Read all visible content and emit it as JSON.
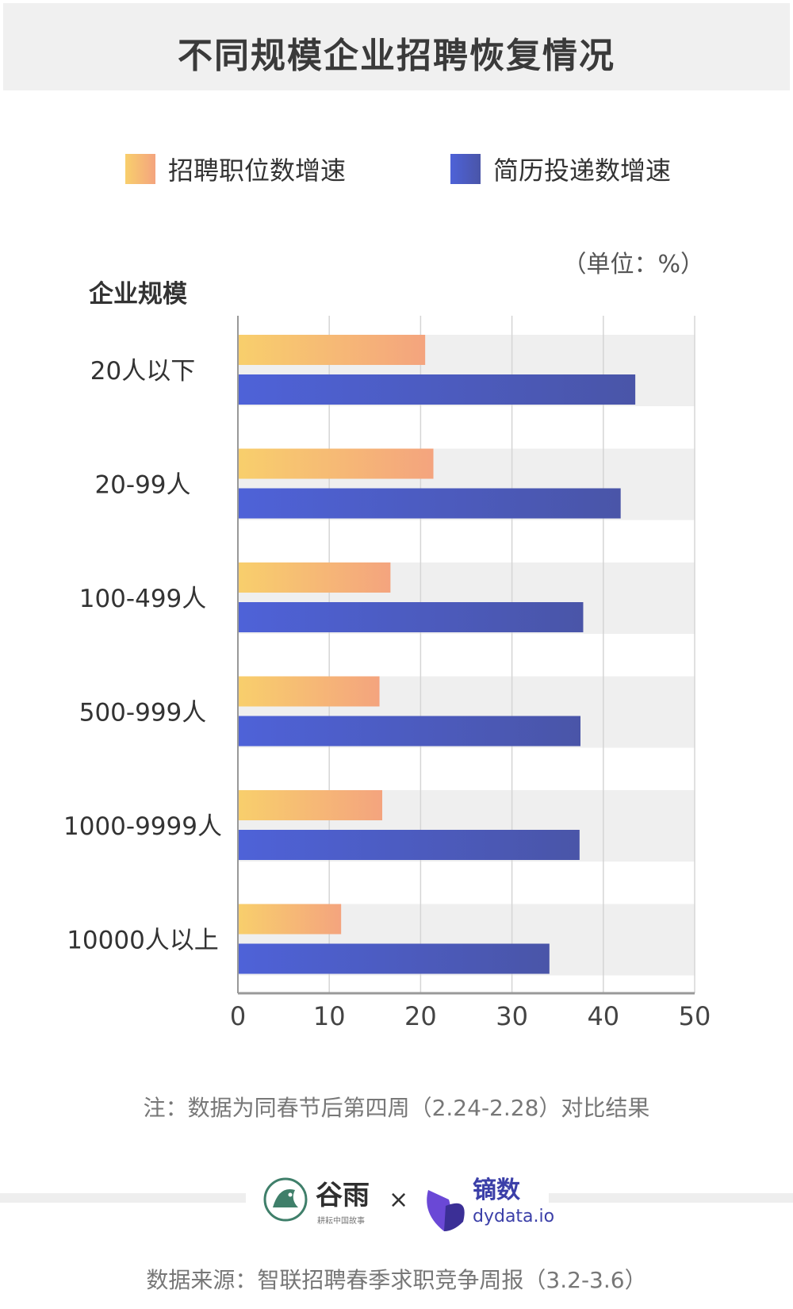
{
  "title": "不同规模企业招聘恢复情况",
  "unit_label": "（单位：%）",
  "colors": {
    "series1_start": "#f8cf6c",
    "series1_end": "#f4a47e",
    "series2_start": "#4e62d8",
    "series2_end": "#4a55a8",
    "row_band": "#efefef",
    "grid": "#d5d5d5",
    "axis": "#999999"
  },
  "chart_data": {
    "type": "bar",
    "orientation": "horizontal",
    "ylabel": "企业规模",
    "categories": [
      "20人以下",
      "20-99人",
      "100-499人",
      "500-999人",
      "1000-9999人",
      "10000人以上"
    ],
    "series": [
      {
        "name": "招聘职位数增速",
        "values": [
          20.5,
          21.4,
          16.7,
          15.5,
          15.8,
          11.3
        ]
      },
      {
        "name": "简历投递数增速",
        "values": [
          43.5,
          41.9,
          37.8,
          37.5,
          37.4,
          34.1
        ]
      }
    ],
    "xlim": [
      0,
      50
    ],
    "xticks": [
      0,
      10,
      20,
      30,
      40,
      50
    ],
    "grid": true,
    "legend_position": "top"
  },
  "note": "注：数据为同春节后第四周（2.24-2.28）对比结果",
  "logos": {
    "guyu_name": "谷雨",
    "guyu_tagline": "耕耘中国故事",
    "cross": "×",
    "dydata_name": "镝数",
    "dydata_domain": "dydata.io"
  },
  "source": "数据来源：智联招聘春季求职竞争周报（3.2-3.6）"
}
